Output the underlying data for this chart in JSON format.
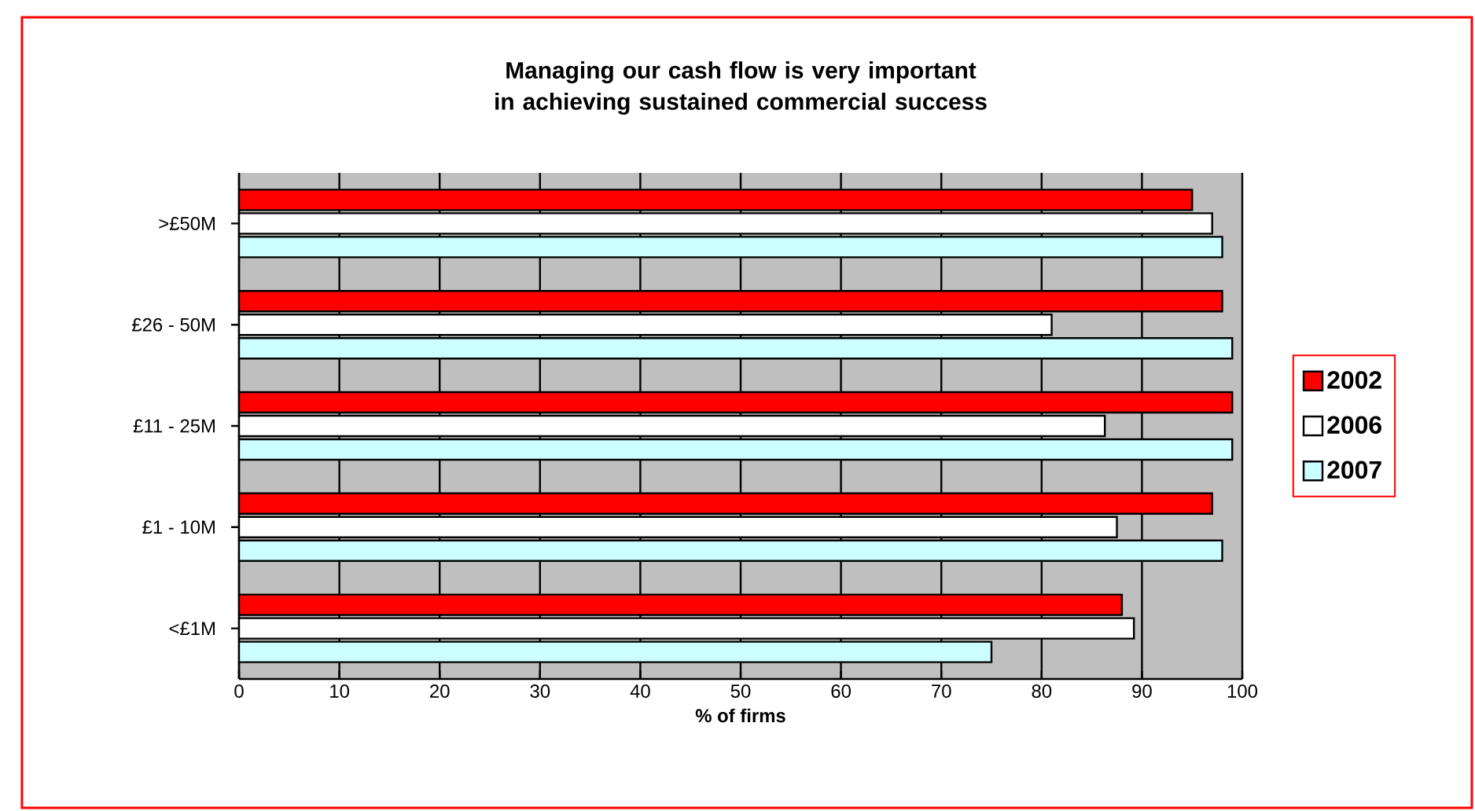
{
  "chart_data": {
    "type": "bar",
    "orientation": "horizontal",
    "title": "Managing our cash flow is very important in achieving sustained commercial success",
    "xlabel": "% of firms",
    "categories": [
      ">£50M",
      "£26 - 50M",
      "£11 - 25M",
      "£1 - 10M",
      "<£1M"
    ],
    "series": [
      {
        "name": "2002",
        "color": "#ff0000",
        "values": [
          95,
          98,
          99,
          97,
          88
        ]
      },
      {
        "name": "2006",
        "color": "#ffffff",
        "values": [
          97,
          81,
          86.3,
          87.5,
          89.2
        ]
      },
      {
        "name": "2007",
        "color": "#ccffff",
        "values": [
          98,
          99,
          99,
          98,
          75
        ]
      }
    ],
    "xlim": [
      0,
      100
    ],
    "xticks": [
      0,
      10,
      20,
      30,
      40,
      50,
      60,
      70,
      80,
      90,
      100
    ],
    "grid": "x",
    "legend": "right"
  }
}
